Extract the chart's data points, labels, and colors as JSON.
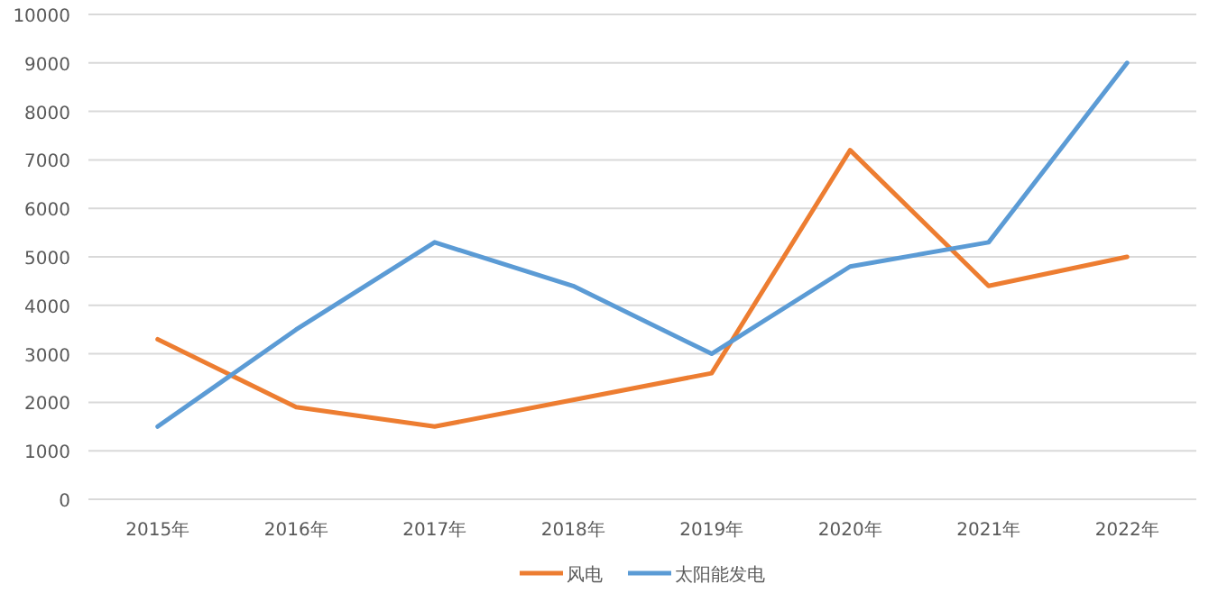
{
  "chart_data": {
    "type": "line",
    "categories": [
      "2015年",
      "2016年",
      "2017年",
      "2018年",
      "2019年",
      "2020年",
      "2021年",
      "2022年"
    ],
    "series": [
      {
        "name": "风电",
        "color": "#ed7d31",
        "values": [
          3300,
          1900,
          1500,
          2050,
          2600,
          7200,
          4400,
          5000
        ]
      },
      {
        "name": "太阳能发电",
        "color": "#5b9bd5",
        "values": [
          1500,
          3500,
          5300,
          4400,
          3000,
          4800,
          5300,
          9000
        ]
      }
    ],
    "ylim": [
      0,
      10000
    ],
    "yticks": [
      0,
      1000,
      2000,
      3000,
      4000,
      5000,
      6000,
      7000,
      8000,
      9000,
      10000
    ],
    "grid": "y",
    "legend": "bottom",
    "marker": "none",
    "line_style": "solid"
  }
}
